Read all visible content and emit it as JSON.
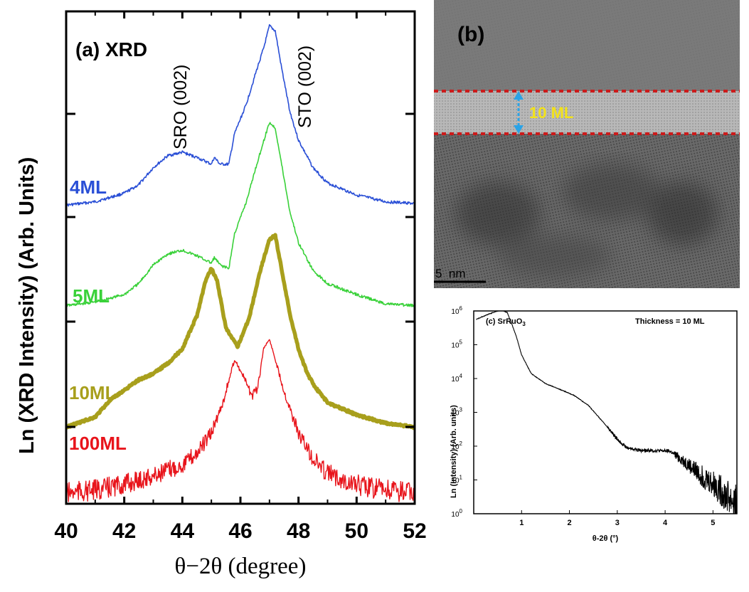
{
  "chart_data": [
    {
      "panel": "(a)",
      "type": "line",
      "title": "(a) XRD",
      "xlabel": "θ−2θ  (degree)",
      "ylabel": "Ln (XRD Intensity) (Arb. Units)",
      "xlim": [
        40,
        52
      ],
      "xticks": [
        "40",
        "42",
        "44",
        "46",
        "48",
        "50",
        "52"
      ],
      "annotations": [
        "SRO (002)",
        "STO (002)"
      ],
      "series": [
        {
          "name": "4ML",
          "color": "#2a4fd6",
          "x": [
            40,
            41,
            42,
            42.5,
            43,
            43.5,
            44,
            44.5,
            45,
            45.1,
            45.3,
            45.6,
            45.8,
            46.2,
            46.5,
            46.8,
            47,
            47.2,
            47.4,
            47.7,
            48,
            48.5,
            49,
            50,
            51,
            52
          ],
          "y": [
            0.4,
            0.6,
            1.1,
            1.6,
            2.6,
            3.3,
            3.5,
            3.2,
            2.8,
            3.2,
            2.8,
            2.8,
            4.6,
            6.3,
            8.0,
            9.6,
            10.9,
            10.6,
            8.6,
            5.9,
            4.2,
            2.6,
            1.7,
            1.0,
            0.6,
            0.5
          ]
        },
        {
          "name": "5ML",
          "color": "#39d139",
          "x": [
            40,
            41,
            42,
            42.5,
            43,
            43.5,
            44,
            44.5,
            45,
            45.1,
            45.3,
            45.6,
            45.8,
            46.2,
            46.5,
            46.8,
            47,
            47.2,
            47.4,
            47.7,
            48,
            48.5,
            49,
            50,
            51,
            52
          ],
          "y": [
            0.4,
            0.6,
            1.0,
            1.6,
            2.6,
            3.2,
            3.4,
            3.1,
            2.7,
            3.0,
            2.6,
            2.4,
            4.3,
            6.0,
            7.7,
            9.3,
            10.3,
            10.0,
            8.2,
            5.5,
            3.8,
            2.3,
            1.6,
            1.0,
            0.5,
            0.4
          ]
        },
        {
          "name": "10ML",
          "color": "#a89f1c",
          "x": [
            40,
            41,
            41.5,
            42,
            42.5,
            43,
            43.5,
            44,
            44.5,
            44.8,
            45,
            45.2,
            45.5,
            45.9,
            46.3,
            46.7,
            47,
            47.2,
            47.4,
            47.7,
            48,
            48.3,
            48.6,
            49,
            50,
            51,
            52
          ],
          "y": [
            0.5,
            1.0,
            1.8,
            2.3,
            2.8,
            3.1,
            3.6,
            4.3,
            5.9,
            7.6,
            8.2,
            7.6,
            5.3,
            4.4,
            5.8,
            8.2,
            9.6,
            9.8,
            8.3,
            6.0,
            4.3,
            3.1,
            2.4,
            1.7,
            1.1,
            0.7,
            0.5
          ]
        },
        {
          "name": "100ML",
          "color": "#e8141b",
          "x": [
            40,
            41,
            42,
            43,
            44,
            44.5,
            45,
            45.4,
            45.8,
            46.1,
            46.4,
            46.6,
            46.8,
            47,
            47.2,
            47.5,
            48,
            48.5,
            49,
            50,
            51,
            52
          ],
          "y": [
            0.3,
            0.4,
            0.6,
            0.9,
            1.3,
            1.7,
            2.4,
            3.5,
            5.0,
            4.4,
            3.7,
            4.0,
            5.4,
            5.7,
            5.0,
            3.9,
            2.4,
            1.5,
            1.0,
            0.6,
            0.4,
            0.3
          ]
        }
      ]
    },
    {
      "panel": "(c)",
      "type": "line",
      "title": "(c) SrRuO",
      "title_sub": "3",
      "annotation": "Thickness = 10 ML",
      "xlabel": "θ-2θ (°)",
      "ylabel": "Ln (Intensity) (Arb. units)",
      "xlim": [
        0,
        5.5
      ],
      "ylim_log10": [
        0,
        6
      ],
      "xticks": [
        "1",
        "2",
        "3",
        "4",
        "5"
      ],
      "ytick_base": "10",
      "ytick_exps": [
        "0",
        "1",
        "2",
        "3",
        "4",
        "5",
        "6"
      ],
      "series": [
        {
          "name": "",
          "color": "#000000",
          "x": [
            0.05,
            0.3,
            0.5,
            0.6,
            0.7,
            0.8,
            0.9,
            1.0,
            1.2,
            1.5,
            1.8,
            2.1,
            2.4,
            2.7,
            3.0,
            3.2,
            3.5,
            3.8,
            4.1,
            4.4,
            4.7,
            5.0,
            5.3,
            5.5
          ],
          "y": [
            5.75,
            5.9,
            6.0,
            6.02,
            5.95,
            5.6,
            5.2,
            4.7,
            4.15,
            3.85,
            3.68,
            3.5,
            3.2,
            2.72,
            2.2,
            1.95,
            1.87,
            1.87,
            1.85,
            1.55,
            1.2,
            0.9,
            0.5,
            0.3
          ]
        }
      ]
    }
  ],
  "panel_b": {
    "label": "(b)",
    "thickness_label": "10 ML",
    "scale_bar": "5  nm"
  }
}
